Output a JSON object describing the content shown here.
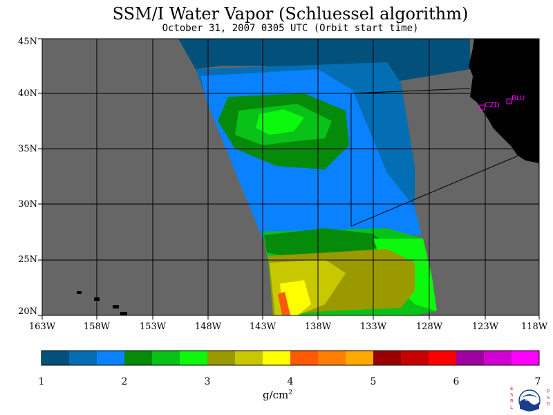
{
  "title": "SSM/I Water Vapor (Schluessel algorithm)",
  "subtitle": "October 31, 2007  0305 UTC  (Orbit start time)",
  "latitude_labels": [
    "45N",
    "40N",
    "35N",
    "30N",
    "25N",
    "20N"
  ],
  "longitude_labels": [
    "163W",
    "158W",
    "153W",
    "148W",
    "143W",
    "138W",
    "133W",
    "128W",
    "123W",
    "118W"
  ],
  "stations": [
    {
      "name": "CZD"
    },
    {
      "name": "BLU"
    }
  ],
  "colorbar": {
    "tick_labels": [
      "1",
      "2",
      "3",
      "4",
      "5",
      "6",
      "7"
    ],
    "unit_base": "g/cm",
    "unit_exp": "2",
    "colors": [
      "#03507a",
      "#036eb4",
      "#0a82ff",
      "#058a0a",
      "#08c218",
      "#0cf80c",
      "#9a9a00",
      "#c8c800",
      "#ffff00",
      "#ff5a00",
      "#ff7e00",
      "#ffa800",
      "#9a0000",
      "#c80000",
      "#ff0000",
      "#a000a0",
      "#d200d2",
      "#ff00ff"
    ]
  },
  "logo": {
    "left_text": "ESRL",
    "right_text": "PSD",
    "center_text": "NOAA"
  },
  "colors": {
    "no_data": "#666666",
    "land": "#000000",
    "grid": "#000000",
    "station": "#ff00ff"
  }
}
